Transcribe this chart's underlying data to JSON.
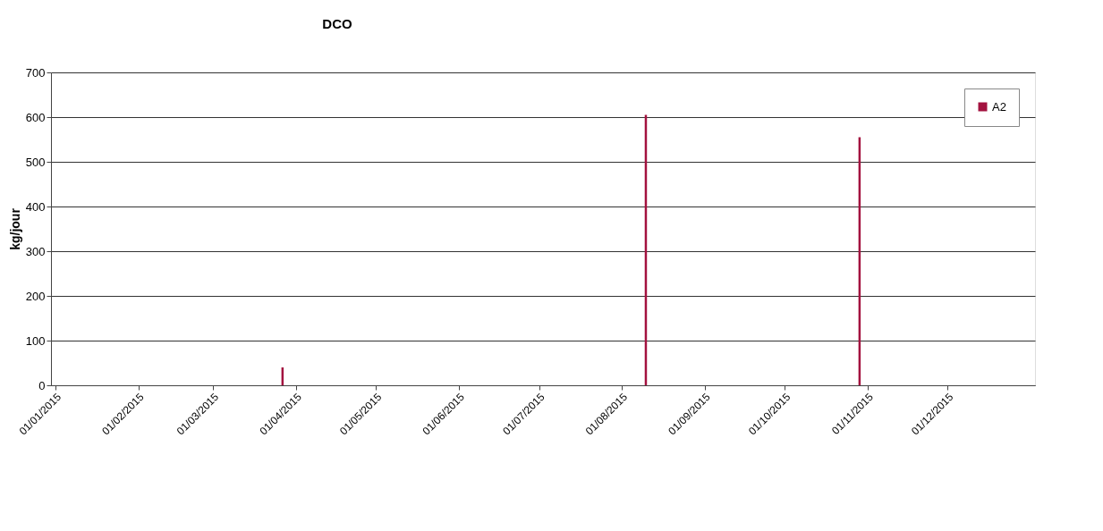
{
  "chart_data": {
    "type": "bar",
    "title": "DCO",
    "ylabel": "kg/jour",
    "x": [
      "2015-03-27",
      "2015-08-10",
      "2015-10-29"
    ],
    "series": [
      {
        "name": "A2",
        "color": "#a3123f",
        "values": [
          40,
          605,
          555
        ]
      }
    ],
    "xlim": [
      "2015-01-01",
      "2016-01-01"
    ],
    "xticks": [
      {
        "value": "2015-01-01",
        "label": "01/01/2015"
      },
      {
        "value": "2015-02-01",
        "label": "01/02/2015"
      },
      {
        "value": "2015-03-01",
        "label": "01/03/2015"
      },
      {
        "value": "2015-04-01",
        "label": "01/04/2015"
      },
      {
        "value": "2015-05-01",
        "label": "01/05/2015"
      },
      {
        "value": "2015-06-01",
        "label": "01/06/2015"
      },
      {
        "value": "2015-07-01",
        "label": "01/07/2015"
      },
      {
        "value": "2015-08-01",
        "label": "01/08/2015"
      },
      {
        "value": "2015-09-01",
        "label": "01/09/2015"
      },
      {
        "value": "2015-10-01",
        "label": "01/10/2015"
      },
      {
        "value": "2015-11-01",
        "label": "01/11/2015"
      },
      {
        "value": "2015-12-01",
        "label": "01/12/2015"
      }
    ],
    "ylim": [
      0,
      700
    ],
    "yticks": [
      0,
      100,
      200,
      300,
      400,
      500,
      600,
      700
    ],
    "grid": "y",
    "legend": "top right"
  }
}
